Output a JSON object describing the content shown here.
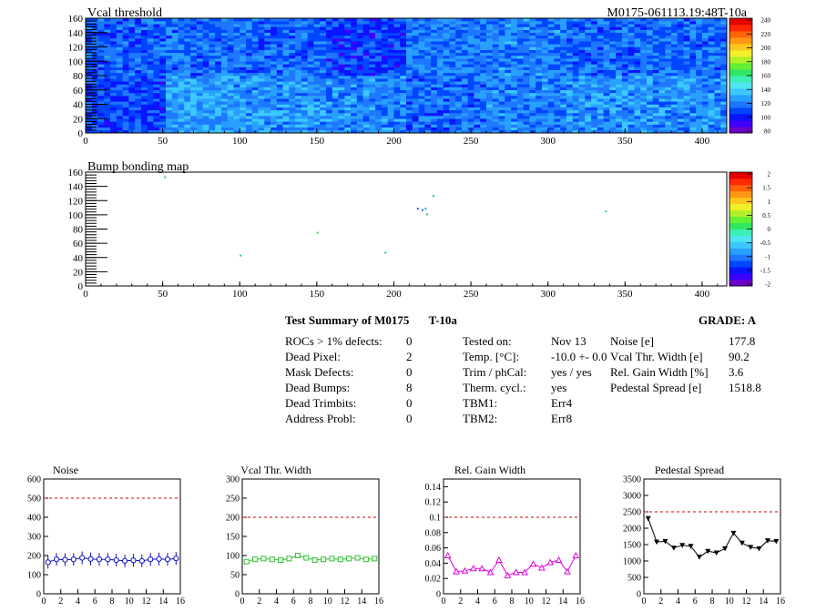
{
  "top_left_title": "Vcal threshold",
  "top_right_title": "M0175-061113.19:48T-10a",
  "map2_title": "Bump bonding map",
  "summary": {
    "title": "Test Summary of M0175",
    "title_tag": "T-10a",
    "grade": "GRADE:  A",
    "col1_labels": [
      "ROCs > 1% defects:",
      "Dead Pixel:",
      "Mask Defects:",
      "Dead Bumps:",
      "Dead Trimbits:",
      "Address Probl:"
    ],
    "col1_values": [
      "0",
      "2",
      "0",
      "8",
      "0",
      "0"
    ],
    "col2_labels": [
      "Tested on:",
      "Temp. [°C]:",
      "Trim / phCal:",
      "Therm. cycl.:",
      "TBM1:",
      "TBM2:"
    ],
    "col2_values": [
      "Nov 13",
      "-10.0 +- 0.0",
      "yes / yes",
      "yes",
      "Err4",
      "Err8"
    ],
    "col3_labels": [
      "Noise [e]",
      "Vcal Thr. Width [e]",
      "Rel. Gain Width [%]",
      "Pedestal Spread [e]"
    ],
    "col3_values": [
      "177.8",
      "90.2",
      "3.6",
      "1518.8"
    ]
  },
  "chart_data": [
    {
      "type": "heatmap",
      "title": "Vcal threshold",
      "xlim": [
        0,
        416
      ],
      "ylim": [
        0,
        160
      ],
      "xticks": [
        "0",
        "50",
        "100",
        "150",
        "200",
        "250",
        "300",
        "350",
        "400"
      ],
      "yticks": [
        "0",
        "20",
        "40",
        "60",
        "80",
        "100",
        "120",
        "140",
        "160"
      ],
      "colorbar_ticks": [
        "80",
        "100",
        "120",
        "140",
        "160",
        "180",
        "200",
        "220",
        "240"
      ],
      "block_levels_top": [
        0.22,
        0.24,
        0.23,
        0.18,
        0.25,
        0.26,
        0.23,
        0.24
      ],
      "block_levels_bottom": [
        0.19,
        0.3,
        0.29,
        0.27,
        0.23,
        0.26,
        0.28,
        0.28
      ]
    },
    {
      "type": "scatter",
      "title": "Bump bonding map",
      "xlim": [
        0,
        416
      ],
      "ylim": [
        0,
        160
      ],
      "xticks": [
        "0",
        "50",
        "100",
        "150",
        "200",
        "250",
        "300",
        "350",
        "400"
      ],
      "yticks": [
        "0",
        "20",
        "40",
        "60",
        "80",
        "100",
        "120",
        "140",
        "160"
      ],
      "colorbar_ticks": [
        "-2",
        "-1.5",
        "-1",
        "-0.5",
        "0",
        "0.5",
        "1",
        "1.5",
        "2"
      ],
      "points": [
        {
          "x": 51,
          "y": 154,
          "c": "#22cc55"
        },
        {
          "x": 100,
          "y": 44,
          "c": "#22cc55"
        },
        {
          "x": 150,
          "y": 76,
          "c": "#44cc44"
        },
        {
          "x": 194,
          "y": 48,
          "c": "#22cc55"
        },
        {
          "x": 215,
          "y": 110,
          "c": "#2244ff"
        },
        {
          "x": 218,
          "y": 108,
          "c": "#2266ff"
        },
        {
          "x": 220,
          "y": 110,
          "c": "#22aaff"
        },
        {
          "x": 221,
          "y": 102,
          "c": "#22cc55"
        },
        {
          "x": 225,
          "y": 128,
          "c": "#22cc55"
        },
        {
          "x": 337,
          "y": 106,
          "c": "#22cc88"
        }
      ]
    },
    {
      "type": "line",
      "title": "Noise",
      "color": "#1010c0",
      "marker": "circle-open",
      "xlim": [
        0,
        16
      ],
      "ylim": [
        0,
        600
      ],
      "yticks": [
        "0",
        "100",
        "200",
        "300",
        "400",
        "500",
        "600"
      ],
      "xticks": [
        "0",
        "2",
        "4",
        "6",
        "8",
        "10",
        "12",
        "14",
        "16"
      ],
      "threshold": 500,
      "x": [
        0.5,
        1.5,
        2.5,
        3.5,
        4.5,
        5.5,
        6.5,
        7.5,
        8.5,
        9.5,
        10.5,
        11.5,
        12.5,
        13.5,
        14.5,
        15.5
      ],
      "y": [
        165,
        180,
        178,
        180,
        188,
        182,
        180,
        180,
        176,
        172,
        175,
        172,
        180,
        182,
        180,
        185
      ]
    },
    {
      "type": "line",
      "title": "Vcal Thr. Width",
      "color": "#30c030",
      "marker": "square-open",
      "xlim": [
        0,
        16
      ],
      "ylim": [
        0,
        300
      ],
      "yticks": [
        "0",
        "50",
        "100",
        "150",
        "200",
        "250",
        "300"
      ],
      "xticks": [
        "0",
        "2",
        "4",
        "6",
        "8",
        "10",
        "12",
        "14",
        "16"
      ],
      "threshold": 200,
      "x": [
        0.5,
        1.5,
        2.5,
        3.5,
        4.5,
        5.5,
        6.5,
        7.5,
        8.5,
        9.5,
        10.5,
        11.5,
        12.5,
        13.5,
        14.5,
        15.5
      ],
      "y": [
        84,
        90,
        92,
        90,
        88,
        92,
        100,
        94,
        88,
        90,
        92,
        90,
        92,
        94,
        90,
        92
      ]
    },
    {
      "type": "line",
      "title": "Rel. Gain Width",
      "color": "#e000e0",
      "marker": "triangle-up",
      "xlim": [
        0,
        16
      ],
      "ylim": [
        0,
        0.15
      ],
      "yticks": [
        "0",
        "0.02",
        "0.04",
        "0.06",
        "0.08",
        "0.1",
        "0.12",
        "0.14"
      ],
      "xticks": [
        "0",
        "2",
        "4",
        "6",
        "8",
        "10",
        "12",
        "14",
        "16"
      ],
      "threshold": 0.1,
      "x": [
        0.5,
        1.5,
        2.5,
        3.5,
        4.5,
        5.5,
        6.5,
        7.5,
        8.5,
        9.5,
        10.5,
        11.5,
        12.5,
        13.5,
        14.5,
        15.5
      ],
      "y": [
        0.05,
        0.029,
        0.03,
        0.033,
        0.033,
        0.028,
        0.044,
        0.024,
        0.028,
        0.028,
        0.039,
        0.034,
        0.041,
        0.044,
        0.029,
        0.05
      ]
    },
    {
      "type": "line",
      "title": "Pedestal Spread",
      "color": "#000000",
      "marker": "triangle-down",
      "xlim": [
        0,
        16
      ],
      "ylim": [
        0,
        3500
      ],
      "yticks": [
        "0",
        "500",
        "1000",
        "1500",
        "2000",
        "2500",
        "3000",
        "3500"
      ],
      "xticks": [
        "0",
        "2",
        "4",
        "6",
        "8",
        "10",
        "12",
        "14",
        "16"
      ],
      "threshold": 2500,
      "x": [
        0.5,
        1.5,
        2.5,
        3.5,
        4.5,
        5.5,
        6.5,
        7.5,
        8.5,
        9.5,
        10.5,
        11.5,
        12.5,
        13.5,
        14.5,
        15.5
      ],
      "y": [
        2300,
        1580,
        1600,
        1400,
        1480,
        1450,
        1120,
        1300,
        1250,
        1380,
        1850,
        1550,
        1420,
        1380,
        1620,
        1600
      ]
    }
  ]
}
